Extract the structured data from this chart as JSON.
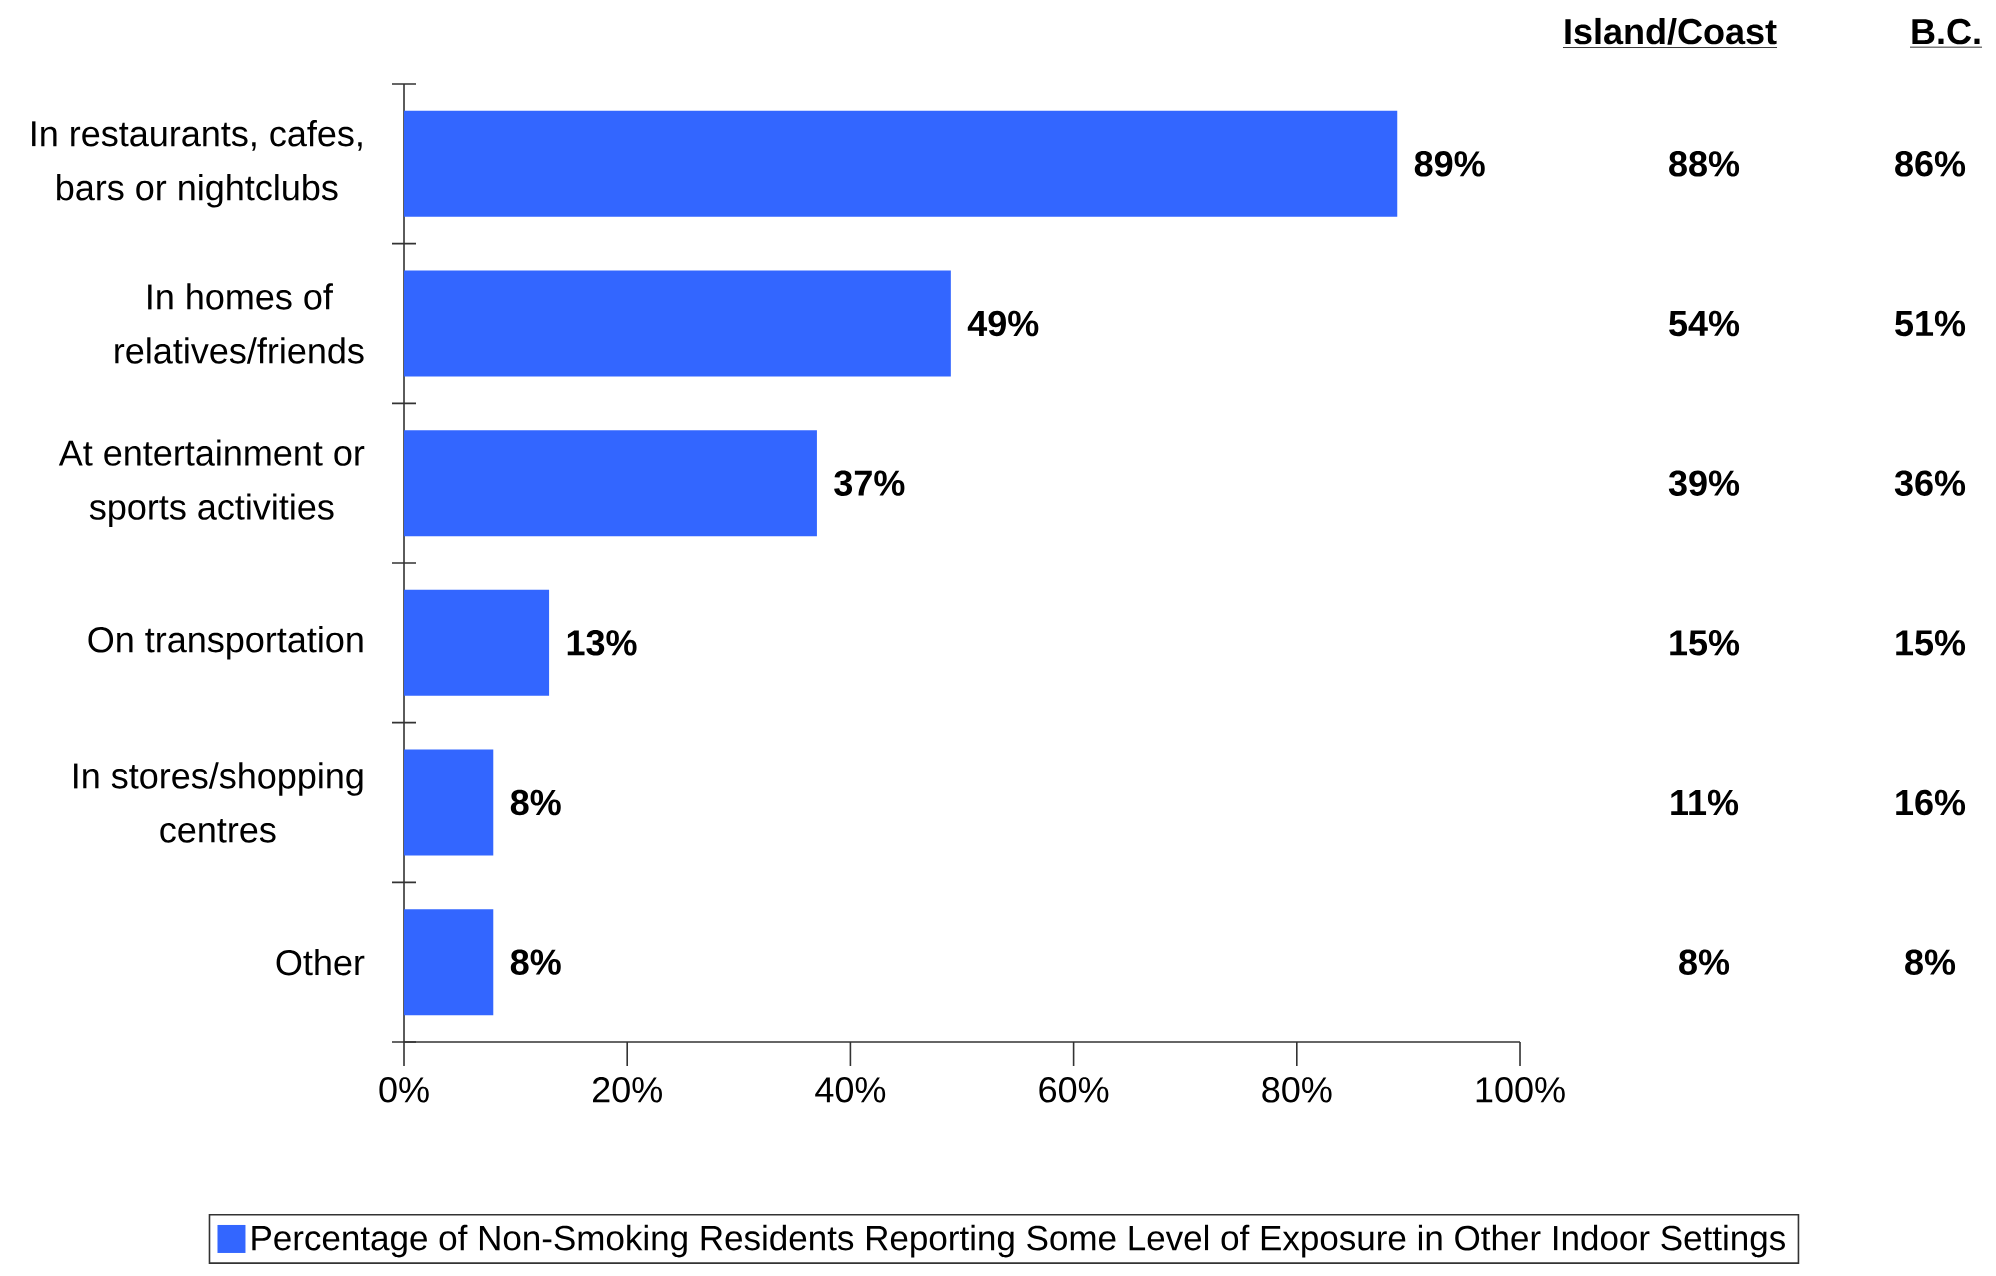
{
  "chart_data": {
    "type": "bar",
    "orientation": "horizontal",
    "categories": [
      "In restaurants, cafes, bars or nightclubs",
      "In homes of relatives/friends",
      "At entertainment or sports activities",
      "On transportation",
      "In stores/shopping centres",
      "Other"
    ],
    "series": [
      {
        "name": "Percentage of Non-Smoking Residents Reporting Some Level of Exposure in Other Indoor Settings",
        "color": "#3366ff",
        "values": [
          89,
          49,
          37,
          13,
          8,
          8
        ],
        "value_labels": [
          "89%",
          "49%",
          "37%",
          "13%",
          "8%",
          "8%"
        ]
      }
    ],
    "xlim": [
      0,
      100
    ],
    "xticks": [
      {
        "value": 0,
        "label": "0%"
      },
      {
        "value": 20,
        "label": "20%"
      },
      {
        "value": 40,
        "label": "40%"
      },
      {
        "value": 60,
        "label": "60%"
      },
      {
        "value": 80,
        "label": "80%"
      },
      {
        "value": 100,
        "label": "100%"
      }
    ],
    "legend": "bottom",
    "annotations": [
      "Island/Coast",
      "B.C.",
      "88%",
      "86%",
      "54%",
      "51%",
      "39%",
      "36%",
      "15%",
      "15%",
      "11%",
      "16%",
      "8%",
      "8%"
    ]
  }
}
